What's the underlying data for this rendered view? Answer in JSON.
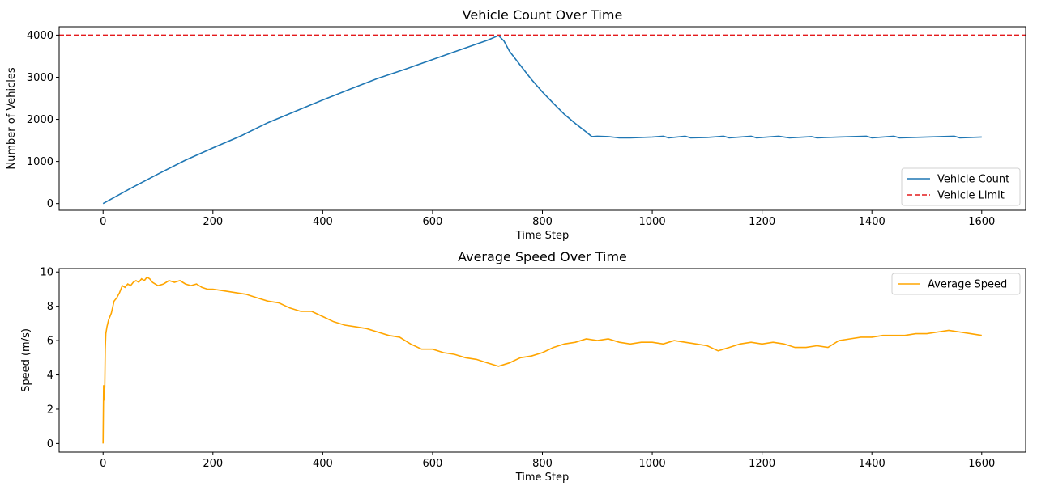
{
  "chart_data": [
    {
      "type": "line",
      "title": "Vehicle Count Over Time",
      "xlabel": "Time Step",
      "ylabel": "Number of Vehicles",
      "xlim": [
        -80,
        1680
      ],
      "ylim": [
        -160,
        4200
      ],
      "xticks": [
        0,
        200,
        400,
        600,
        800,
        1000,
        1200,
        1400,
        1600
      ],
      "yticks": [
        0,
        1000,
        2000,
        3000,
        4000
      ],
      "legend": "bottom-right",
      "grid": false,
      "series": [
        {
          "name": "Vehicle Count",
          "color": "#1f77b4",
          "style": "solid",
          "x": [
            0,
            50,
            100,
            150,
            200,
            250,
            300,
            350,
            400,
            450,
            500,
            550,
            600,
            650,
            700,
            720,
            730,
            740,
            760,
            780,
            800,
            820,
            840,
            860,
            880,
            890,
            900,
            920,
            940,
            960,
            1000,
            1020,
            1030,
            1060,
            1070,
            1100,
            1130,
            1140,
            1180,
            1190,
            1230,
            1250,
            1290,
            1300,
            1340,
            1390,
            1400,
            1440,
            1450,
            1500,
            1550,
            1560,
            1600
          ],
          "y": [
            0,
            360,
            700,
            1030,
            1320,
            1600,
            1920,
            2190,
            2460,
            2720,
            2970,
            3190,
            3420,
            3650,
            3880,
            3990,
            3860,
            3620,
            3280,
            2950,
            2650,
            2380,
            2120,
            1900,
            1700,
            1590,
            1600,
            1590,
            1560,
            1560,
            1580,
            1600,
            1560,
            1600,
            1560,
            1570,
            1600,
            1560,
            1600,
            1560,
            1600,
            1560,
            1590,
            1560,
            1580,
            1600,
            1560,
            1600,
            1560,
            1580,
            1600,
            1560,
            1580
          ]
        },
        {
          "name": "Vehicle Limit",
          "color": "#e41a1c",
          "style": "dashed",
          "x": [
            -80,
            1680
          ],
          "y": [
            4000,
            4000
          ]
        }
      ]
    },
    {
      "type": "line",
      "title": "Average Speed Over Time",
      "xlabel": "Time Step",
      "ylabel": "Speed (m/s)",
      "xlim": [
        -80,
        1680
      ],
      "ylim": [
        -0.5,
        10.2
      ],
      "xticks": [
        0,
        200,
        400,
        600,
        800,
        1000,
        1200,
        1400,
        1600
      ],
      "yticks": [
        0,
        2,
        4,
        6,
        8,
        10
      ],
      "legend": "top-right",
      "grid": false,
      "series": [
        {
          "name": "Average Speed",
          "color": "#ffa500",
          "style": "solid",
          "x": [
            0,
            1,
            2,
            3,
            4,
            5,
            7,
            10,
            15,
            20,
            25,
            30,
            35,
            40,
            45,
            50,
            55,
            60,
            65,
            70,
            75,
            80,
            85,
            90,
            100,
            110,
            120,
            130,
            140,
            150,
            160,
            170,
            180,
            190,
            200,
            220,
            240,
            260,
            280,
            300,
            320,
            340,
            360,
            380,
            400,
            420,
            440,
            460,
            480,
            500,
            520,
            540,
            560,
            580,
            600,
            620,
            640,
            660,
            680,
            700,
            720,
            740,
            760,
            780,
            800,
            820,
            840,
            860,
            880,
            900,
            920,
            940,
            960,
            980,
            1000,
            1020,
            1040,
            1060,
            1080,
            1100,
            1120,
            1140,
            1160,
            1180,
            1200,
            1220,
            1240,
            1260,
            1280,
            1300,
            1320,
            1340,
            1360,
            1380,
            1400,
            1420,
            1440,
            1460,
            1480,
            1500,
            1520,
            1540,
            1560,
            1580,
            1600
          ],
          "y": [
            0,
            3.4,
            2.5,
            3.3,
            5.5,
            6.4,
            6.8,
            7.2,
            7.6,
            8.3,
            8.5,
            8.8,
            9.2,
            9.1,
            9.3,
            9.2,
            9.4,
            9.5,
            9.4,
            9.6,
            9.5,
            9.7,
            9.6,
            9.4,
            9.2,
            9.3,
            9.5,
            9.4,
            9.5,
            9.3,
            9.2,
            9.3,
            9.1,
            9.0,
            9.0,
            8.9,
            8.8,
            8.7,
            8.5,
            8.3,
            8.2,
            7.9,
            7.7,
            7.7,
            7.4,
            7.1,
            6.9,
            6.8,
            6.7,
            6.5,
            6.3,
            6.2,
            5.8,
            5.5,
            5.5,
            5.3,
            5.2,
            5.0,
            4.9,
            4.7,
            4.5,
            4.7,
            5.0,
            5.1,
            5.3,
            5.6,
            5.8,
            5.9,
            6.1,
            6.0,
            6.1,
            5.9,
            5.8,
            5.9,
            5.9,
            5.8,
            6.0,
            5.9,
            5.8,
            5.7,
            5.4,
            5.6,
            5.8,
            5.9,
            5.8,
            5.9,
            5.8,
            5.6,
            5.6,
            5.7,
            5.6,
            6.0,
            6.1,
            6.2,
            6.2,
            6.3,
            6.3,
            6.3,
            6.4,
            6.4,
            6.5,
            6.6,
            6.5,
            6.4,
            6.3
          ]
        }
      ]
    }
  ]
}
